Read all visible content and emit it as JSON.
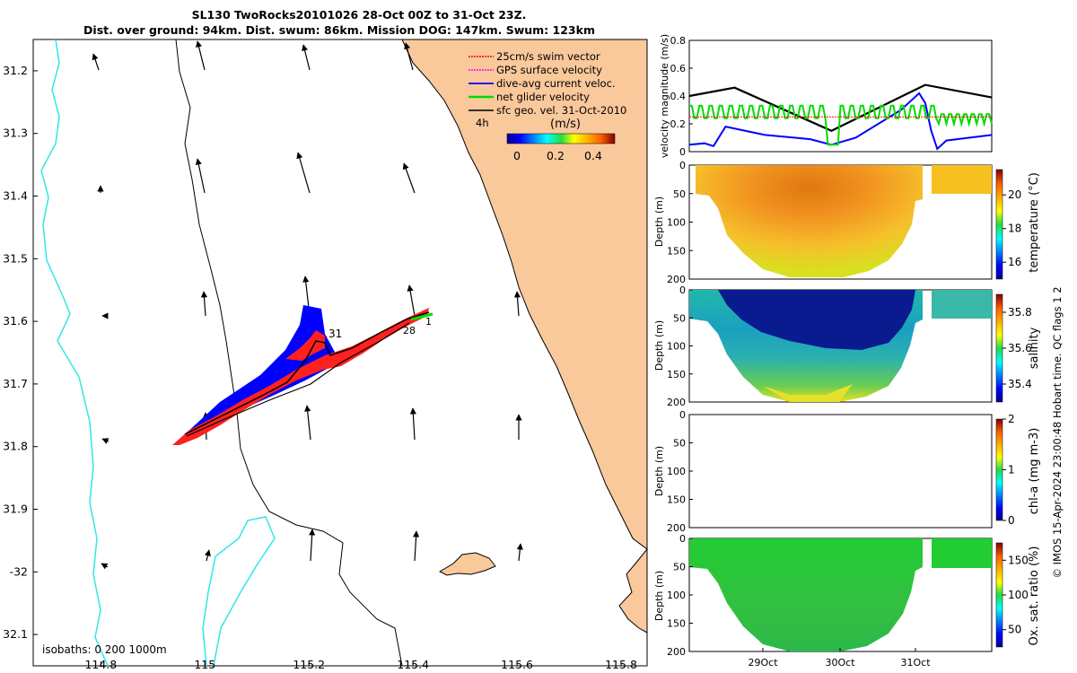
{
  "title_line1": "SL130 TwoRocks20101026 28-Oct 00Z to 31-Oct 23Z.",
  "title_line2": "Dist. over ground: 94km. Dist. swum: 86km. Mission DOG: 147km. Swum: 123km",
  "footer_note": "© IMOS 15-Apr-2024 23:00:48 Hobart time. QC flags 1  2",
  "colors": {
    "land": "#f9c89b",
    "coast": "#000000",
    "isobath_200": "#000000",
    "isobath_1000": "#33e6e6",
    "swim_vector": "#ff0000",
    "gps_velocity": "#ff00ff",
    "current": "#0000ff",
    "net_velocity": "#00dd00",
    "sfc_geo": "#000000"
  },
  "chart_data": [
    {
      "type": "map",
      "name": "glider track and velocity map",
      "xlim": [
        114.67,
        115.85
      ],
      "ylim": [
        32.15,
        31.15
      ],
      "x_ticks": [
        114.8,
        115,
        115.2,
        115.4,
        115.6,
        115.8
      ],
      "x_tick_labels": [
        "114.8",
        "115",
        "115.2",
        "115.4",
        "115.6",
        "115.8"
      ],
      "y_ticks": [
        31.2,
        31.3,
        31.4,
        31.5,
        31.6,
        31.7,
        31.8,
        31.9,
        32,
        32.1
      ],
      "y_tick_labels": [
        "31.2",
        "31.3",
        "31.4",
        "31.5",
        "31.6",
        "31.7",
        "31.8",
        "31.9",
        "-32",
        "32.1"
      ],
      "legend": [
        {
          "label": "25cm/s swim vector",
          "color": "#ff0000"
        },
        {
          "label": "GPS surface velocity",
          "color": "#ff00ff"
        },
        {
          "label": "dive-avg current veloc.",
          "color": "#0000ff"
        },
        {
          "label": "net glider velocity",
          "color": "#00dd00"
        },
        {
          "label": "sfc geo. vel. 31-Oct-2010",
          "color": "#000000"
        }
      ],
      "legend_time_label": "4h",
      "colorbar": {
        "label": "(m/s)",
        "ticks": [
          "0",
          "0.2",
          "0.4"
        ],
        "range": [
          0,
          0.5
        ]
      },
      "isobaths_label": "isobaths: 0   200  1000m",
      "track_labels": [
        "31",
        "28",
        "1"
      ],
      "track": [
        [
          114.95,
          31.8
        ],
        [
          115.05,
          31.76
        ],
        [
          115.12,
          31.73
        ],
        [
          115.2,
          31.705
        ],
        [
          115.25,
          31.68
        ],
        [
          115.3,
          31.665
        ],
        [
          115.35,
          31.645
        ],
        [
          115.4,
          31.62
        ],
        [
          115.43,
          31.6
        ]
      ]
    },
    {
      "type": "line",
      "name": "velocity magnitude",
      "ylabel": "velocity magnitude (m/s)",
      "ylim": [
        0,
        0.8
      ],
      "y_ticks": [
        "0",
        "0.2",
        "0.4",
        "0.6",
        "0.8"
      ],
      "series": [
        {
          "name": "black",
          "color": "#000000",
          "t": [
            0,
            0.15,
            0.47,
            0.78,
            1.0
          ],
          "v": [
            0.4,
            0.46,
            0.15,
            0.48,
            0.39
          ]
        },
        {
          "name": "blue",
          "color": "#0000ff",
          "t": [
            0,
            0.05,
            0.08,
            0.12,
            0.25,
            0.4,
            0.47,
            0.55,
            0.7,
            0.76,
            0.78,
            0.8,
            0.82,
            0.85,
            1.0
          ],
          "v": [
            0.05,
            0.06,
            0.04,
            0.18,
            0.12,
            0.09,
            0.05,
            0.1,
            0.3,
            0.42,
            0.35,
            0.15,
            0.02,
            0.08,
            0.12
          ]
        },
        {
          "name": "green",
          "color": "#00dd00",
          "t": [
            0,
            1.0
          ],
          "v": [
            0.32,
            0.27
          ]
        },
        {
          "name": "red",
          "color": "#ff0000",
          "t": [
            0,
            1.0
          ],
          "v": [
            0.25,
            0.25
          ]
        }
      ]
    },
    {
      "type": "heatmap",
      "name": "temperature section",
      "ylabel": "Depth (m)",
      "ylim": [
        200,
        0
      ],
      "y_ticks": [
        "0",
        "50",
        "100",
        "150",
        "200"
      ],
      "colorbar_label": "temperature (°C)",
      "colorbar_ticks": [
        "16",
        "18",
        "20"
      ],
      "colorbar_range": [
        15,
        21.5
      ]
    },
    {
      "type": "heatmap",
      "name": "salinity section",
      "ylabel": "Depth (m)",
      "ylim": [
        200,
        0
      ],
      "y_ticks": [
        "0",
        "50",
        "100",
        "150",
        "200"
      ],
      "colorbar_label": "salinity",
      "colorbar_ticks": [
        "35.4",
        "35.6",
        "35.8"
      ],
      "colorbar_range": [
        35.3,
        35.9
      ]
    },
    {
      "type": "heatmap",
      "name": "chlorophyll section",
      "ylabel": "Depth (m)",
      "ylim": [
        200,
        0
      ],
      "y_ticks": [
        "0",
        "50",
        "100",
        "150",
        "200"
      ],
      "colorbar_label": "chl-a (mg m-3)",
      "colorbar_ticks": [
        "0",
        "1",
        "2"
      ],
      "colorbar_range": [
        0,
        2
      ]
    },
    {
      "type": "heatmap",
      "name": "oxygen saturation section",
      "ylabel": "Depth (m)",
      "ylim": [
        200,
        0
      ],
      "y_ticks": [
        "0",
        "50",
        "100",
        "150",
        "200"
      ],
      "colorbar_label": "Ox. sat. ratio (%)",
      "colorbar_ticks": [
        "50",
        "100",
        "150"
      ],
      "colorbar_range": [
        25,
        175
      ],
      "x_tick_labels": [
        "29Oct",
        "30Oct",
        "31Oct"
      ]
    }
  ]
}
